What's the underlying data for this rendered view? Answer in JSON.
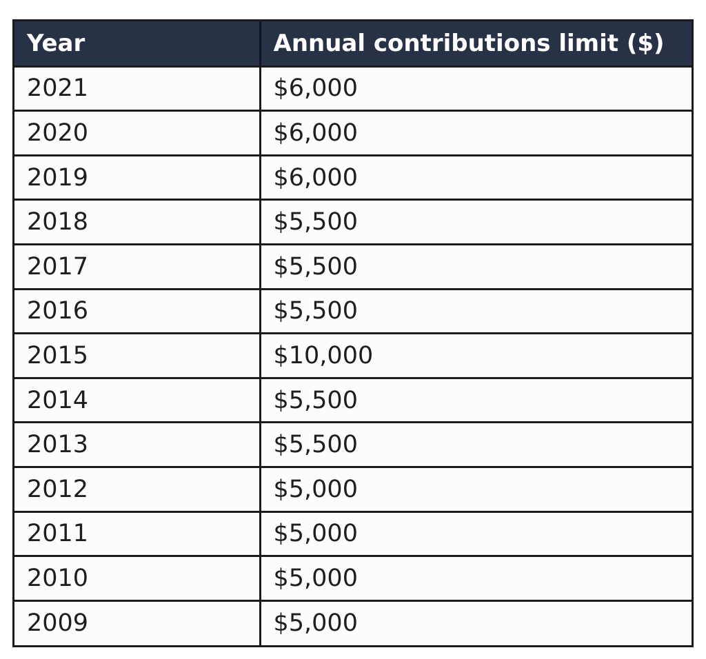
{
  "chart_data": {
    "type": "table",
    "columns": [
      "Year",
      "Annual contributions limit ($)"
    ],
    "rows": [
      [
        "2021",
        "$6,000"
      ],
      [
        "2020",
        "$6,000"
      ],
      [
        "2019",
        "$6,000"
      ],
      [
        "2018",
        "$5,500"
      ],
      [
        "2017",
        "$5,500"
      ],
      [
        "2016",
        "$5,500"
      ],
      [
        "2015",
        "$10,000"
      ],
      [
        "2014",
        "$5,500"
      ],
      [
        "2013",
        "$5,500"
      ],
      [
        "2012",
        "$5,000"
      ],
      [
        "2011",
        "$5,000"
      ],
      [
        "2010",
        "$5,000"
      ],
      [
        "2009",
        "$5,000"
      ]
    ]
  },
  "colors": {
    "header_background": "#283246",
    "header_text": "#ffffff",
    "grid_lines": "#1b1b1f",
    "body_text": "#1e1e22"
  }
}
